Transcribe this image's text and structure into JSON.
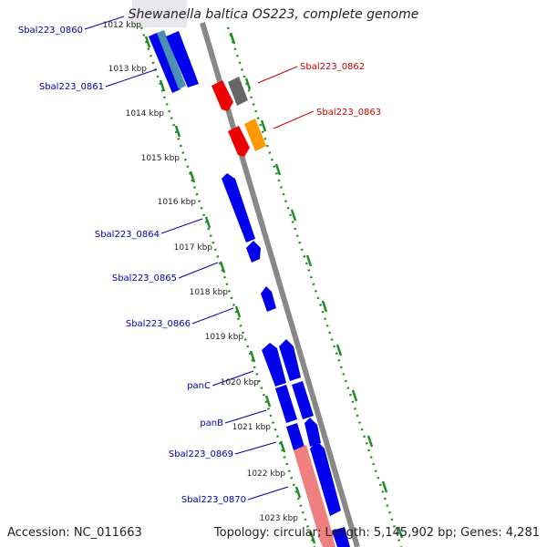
{
  "title": "Shewanella baltica OS223, complete genome",
  "accession": "Accession: NC_011663",
  "topology": "Topology: circular; Length: 5,145,902 bp; Genes: 4,281",
  "colors": {
    "gene_blue": "#0000ee",
    "gene_red": "#ee0000",
    "gene_orange": "#ff9900",
    "gene_grey": "#666666",
    "gene_pink": "#f08080",
    "gene_teal": "#4a90b0",
    "label_blue": "#0000aa",
    "label_red": "#cc0000",
    "tick_green": "#228B22",
    "backbone": "#888888"
  },
  "kbp_ticks": [
    "1012 kbp",
    "1013 kbp",
    "1014 kbp",
    "1015 kbp",
    "1016 kbp",
    "1017 kbp",
    "1018 kbp",
    "1019 kbp",
    "1020 kbp",
    "1021 kbp",
    "1022 kbp",
    "1023 kbp"
  ],
  "gene_labels": {
    "g0860": "Sbal223_0860",
    "g0861": "Sbal223_0861",
    "g0862": "Sbal223_0862",
    "g0863": "Sbal223_0863",
    "g0864": "Sbal223_0864",
    "g0865": "Sbal223_0865",
    "g0866": "Sbal223_0866",
    "panC": "panC",
    "panB": "panB",
    "g0869": "Sbal223_0869",
    "g0870": "Sbal223_0870"
  }
}
